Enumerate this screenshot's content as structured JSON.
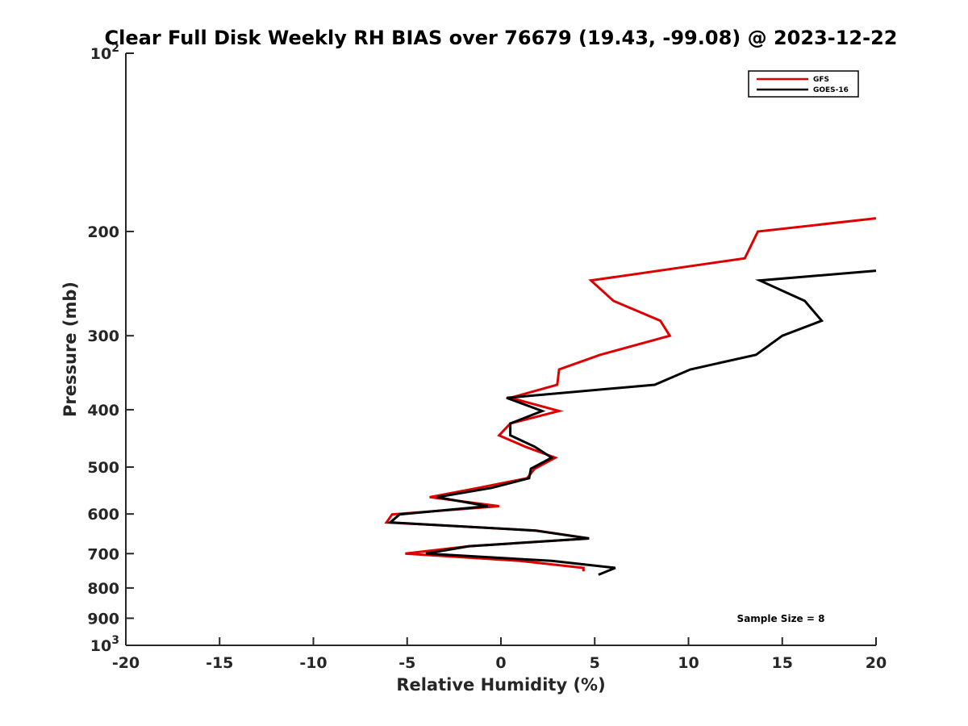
{
  "chart_data": {
    "type": "line",
    "title": "Clear Full Disk Weekly RH BIAS over 76679 (19.43, -99.08) @ 2023-12-22",
    "xlabel": "Relative Humidity (%)",
    "ylabel": "Pressure (mb)",
    "xlim": [
      -20,
      20
    ],
    "ylim": [
      100,
      1000
    ],
    "y_scale": "log",
    "y_reversed": true,
    "x_ticks": [
      "-20",
      "-15",
      "-10",
      "-5",
      "0",
      "5",
      "10",
      "15",
      "20"
    ],
    "y_ticks": [
      {
        "value": 100,
        "base": "10",
        "exp": "2"
      },
      {
        "value": 200,
        "label": "200"
      },
      {
        "value": 300,
        "label": "300"
      },
      {
        "value": 400,
        "label": "400"
      },
      {
        "value": 500,
        "label": "500"
      },
      {
        "value": 600,
        "label": "600"
      },
      {
        "value": 700,
        "label": "700"
      },
      {
        "value": 800,
        "label": "800"
      },
      {
        "value": 900,
        "label": "900"
      },
      {
        "value": 1000,
        "base": "10",
        "exp": "3"
      }
    ],
    "grid": false,
    "legend_position": "top-right",
    "series": [
      {
        "name": "GFS",
        "color": "#dd0000",
        "points": [
          [
            20.0,
            190
          ],
          [
            13.7,
            200
          ],
          [
            13.0,
            222
          ],
          [
            4.8,
            242
          ],
          [
            6.0,
            262
          ],
          [
            8.5,
            283
          ],
          [
            9.0,
            300
          ],
          [
            5.3,
            323
          ],
          [
            3.1,
            342
          ],
          [
            3.0,
            363
          ],
          [
            0.5,
            382
          ],
          [
            3.1,
            402
          ],
          [
            0.5,
            422
          ],
          [
            -0.1,
            442
          ],
          [
            1.3,
            462
          ],
          [
            2.9,
            482
          ],
          [
            1.8,
            503
          ],
          [
            1.4,
            522
          ],
          [
            -1.2,
            542
          ],
          [
            -3.8,
            562
          ],
          [
            -0.1,
            582
          ],
          [
            -5.8,
            601
          ],
          [
            -6.1,
            620
          ],
          [
            1.9,
            640
          ],
          [
            4.7,
            660
          ],
          [
            -1.7,
            680
          ],
          [
            -5.1,
            700
          ],
          [
            1.0,
            720
          ],
          [
            4.4,
            740
          ],
          [
            4.4,
            750
          ]
        ]
      },
      {
        "name": "GOES-16",
        "color": "#000000",
        "points": [
          [
            20.0,
            233
          ],
          [
            13.8,
            242
          ],
          [
            16.2,
            262
          ],
          [
            17.1,
            283
          ],
          [
            15.0,
            300
          ],
          [
            13.6,
            323
          ],
          [
            10.1,
            342
          ],
          [
            8.2,
            363
          ],
          [
            0.3,
            382
          ],
          [
            2.2,
            402
          ],
          [
            0.5,
            422
          ],
          [
            0.5,
            442
          ],
          [
            1.8,
            462
          ],
          [
            2.7,
            482
          ],
          [
            1.6,
            503
          ],
          [
            1.5,
            522
          ],
          [
            -0.5,
            542
          ],
          [
            -3.4,
            562
          ],
          [
            -0.7,
            582
          ],
          [
            -5.4,
            601
          ],
          [
            -5.9,
            620
          ],
          [
            1.8,
            640
          ],
          [
            4.7,
            660
          ],
          [
            -1.7,
            680
          ],
          [
            -4.0,
            700
          ],
          [
            2.7,
            720
          ],
          [
            6.1,
            740
          ],
          [
            5.2,
            760
          ]
        ]
      }
    ],
    "annotation": "Sample Size = 8"
  }
}
